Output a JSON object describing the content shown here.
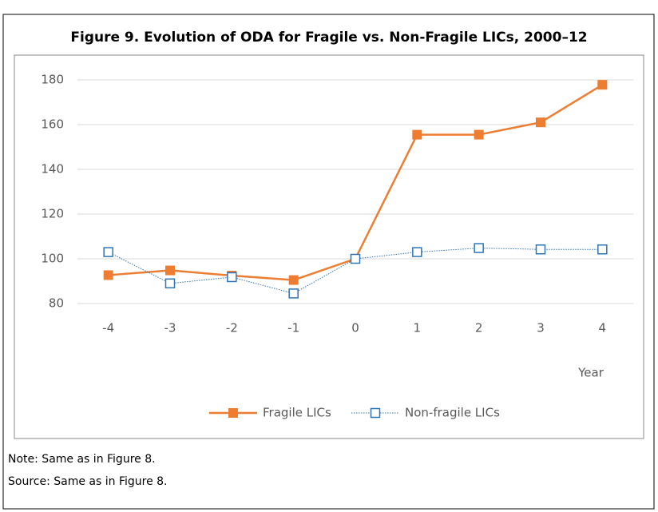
{
  "chart_data": {
    "type": "line",
    "title": "Figure 9. Evolution of ODA for Fragile vs. Non-Fragile LICs, 2000–12",
    "x_label": "Year",
    "categories": [
      "-4",
      "-3",
      "-2",
      "-1",
      "0",
      "1",
      "2",
      "3",
      "4"
    ],
    "series": [
      {
        "name": "Fragile LICs",
        "color": "#ed7d31",
        "values": [
          92.7,
          94.8,
          92.5,
          90.5,
          100,
          155.5,
          155.5,
          161,
          177.8
        ]
      },
      {
        "name": "Non-fragile LICs",
        "color": "#2e75b6",
        "values": [
          103,
          89,
          91.8,
          84.5,
          100,
          103,
          104.8,
          104.2,
          104.2
        ]
      }
    ],
    "ylim": [
      80,
      180
    ],
    "yticks": [
      80,
      100,
      120,
      140,
      160,
      180
    ],
    "grid": true,
    "legend": "bottom"
  },
  "notes": [
    "Note: Same as in Figure 8.",
    "Source: Same as in Figure 8."
  ]
}
